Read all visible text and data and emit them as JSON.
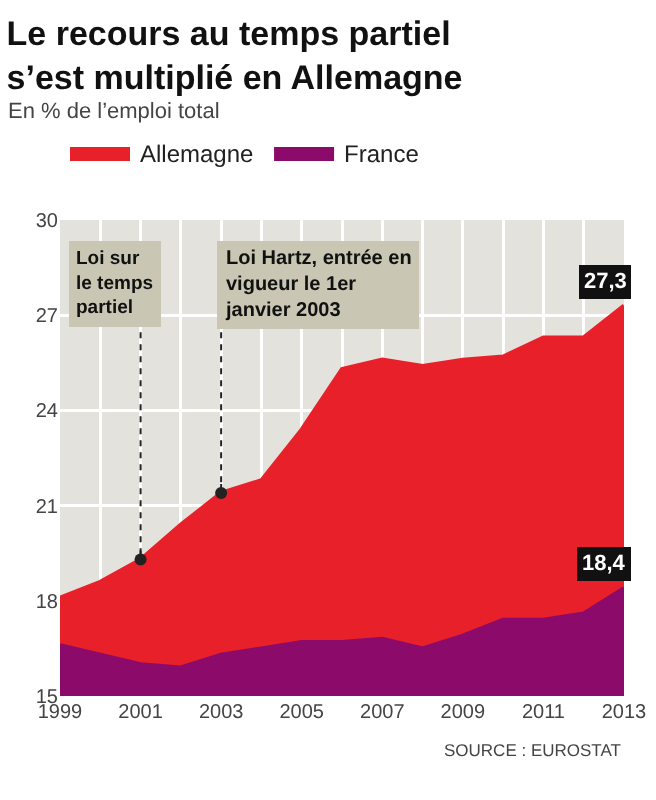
{
  "chart_data": {
    "type": "area",
    "title": "Le recours au temps partiel s’est multiplié en Allemagne",
    "subtitle": "En % de l’emploi total",
    "x": [
      1999,
      2000,
      2001,
      2002,
      2003,
      2004,
      2005,
      2006,
      2007,
      2008,
      2009,
      2010,
      2011,
      2012,
      2013
    ],
    "series": [
      {
        "name": "Allemagne",
        "color": "#e8202a",
        "values": [
          18.1,
          18.6,
          19.3,
          20.4,
          21.4,
          21.8,
          23.4,
          25.3,
          25.6,
          25.4,
          25.6,
          25.7,
          26.3,
          26.3,
          27.3
        ],
        "value_labels": [
          null,
          null,
          null,
          null,
          null,
          null,
          null,
          null,
          null,
          null,
          null,
          null,
          null,
          null,
          "27,3"
        ]
      },
      {
        "name": "France",
        "color": "#8b0a6a",
        "values": [
          16.6,
          16.3,
          16.0,
          15.9,
          16.3,
          16.5,
          16.7,
          16.7,
          16.8,
          16.5,
          16.9,
          17.4,
          17.4,
          17.6,
          18.4
        ],
        "value_labels": [
          null,
          null,
          null,
          null,
          null,
          null,
          null,
          null,
          null,
          null,
          null,
          null,
          null,
          null,
          "18,4"
        ]
      }
    ],
    "xlim": [
      1999,
      2013
    ],
    "xticks": [
      1999,
      {
        "value": 2000,
        "label": null
      },
      2001,
      {
        "value": 2002,
        "label": null
      },
      2003,
      {
        "value": 2004,
        "label": null
      },
      2005,
      {
        "value": 2006,
        "label": null
      },
      2007,
      {
        "value": 2008,
        "label": null
      },
      2009,
      {
        "value": 2010,
        "label": null
      },
      2011,
      {
        "value": 2012,
        "label": null
      },
      2013
    ],
    "ylim": [
      15,
      30
    ],
    "yticks": [
      15,
      18,
      21,
      24,
      27,
      30
    ],
    "grid": true,
    "legend": "top left",
    "annotations": [
      {
        "text": "Loi sur le temps partiel",
        "x": 2001,
        "y": 19.3
      },
      {
        "text": "Loi Hartz, entrée en vigueur le 1er janvier 2003",
        "x": 2003,
        "y": 21.4
      },
      "SOURCE : EUROSTAT"
    ]
  }
}
